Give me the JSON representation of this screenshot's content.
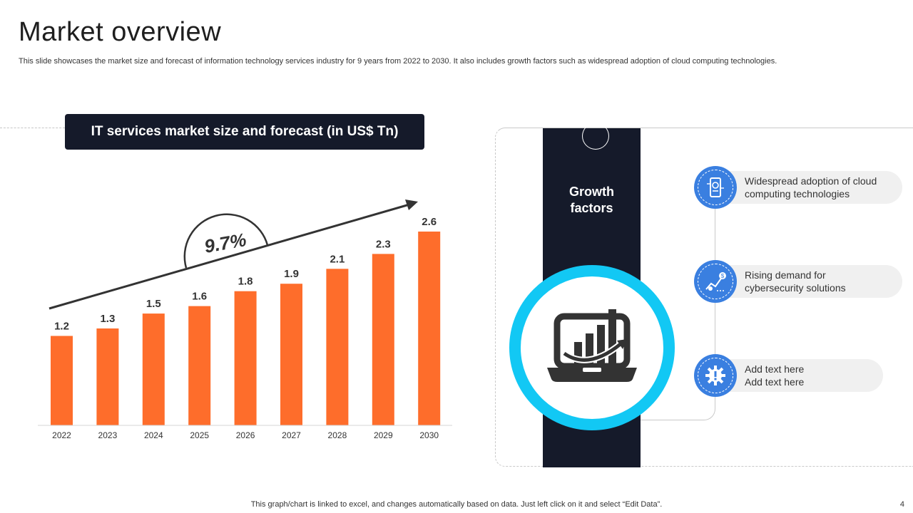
{
  "page": {
    "title": "Market overview",
    "subtitle": "This slide showcases the market size and forecast of information technology services industry for 9 years from 2022 to 2030. It also includes growth factors such as widespread adoption of cloud computing technologies.",
    "footer_note": "This graph/chart is linked to excel,  and changes automatically based on data. Just left click on it and select “Edit Data”.",
    "page_number": "4"
  },
  "chart_data": {
    "type": "bar",
    "title": "IT services market size and forecast (in US$ Tn)",
    "categories": [
      "2022",
      "2023",
      "2024",
      "2025",
      "2026",
      "2027",
      "2028",
      "2029",
      "2030"
    ],
    "values": [
      1.2,
      1.3,
      1.5,
      1.6,
      1.8,
      1.9,
      2.1,
      2.3,
      2.6
    ],
    "value_labels": [
      "1.2",
      "1.3",
      "1.5",
      "1.6",
      "1.8",
      "1.9",
      "2.1",
      "2.3",
      "2.6"
    ],
    "ylim": [
      0,
      2.6
    ],
    "annotation": "9.7%",
    "bar_color": "#fe6d2b",
    "grid": false,
    "legend": "none"
  },
  "growth": {
    "label": "Growth\nfactors",
    "ring_color": "#12c8f4",
    "panel_color": "#151a2a",
    "items": [
      {
        "text": "Widespread adoption of cloud\ncomputing technologies",
        "icon": "cloud-phone-icon"
      },
      {
        "text": "Rising demand for\ncybersecurity solutions",
        "icon": "finance-growth-icon"
      },
      {
        "text": "Add text here\nAdd text here",
        "icon": "gear-icon"
      }
    ],
    "icon_color": "#3a7fe0",
    "center_icon": "laptop-chart-icon"
  }
}
